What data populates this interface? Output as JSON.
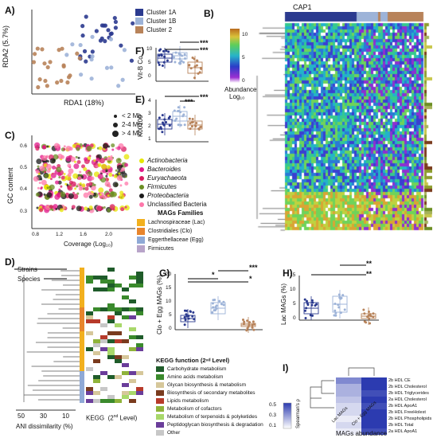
{
  "panels": {
    "A": "A)",
    "B": "B)",
    "C": "C)",
    "D": "D)",
    "E": "E)",
    "F": "F)",
    "G": "G)",
    "H": "H)",
    "I": "I)"
  },
  "cluster_legend": [
    {
      "label": "Cluster 1A",
      "color": "#2b3a8f"
    },
    {
      "label": "Cluster 1B",
      "color": "#9db3d8"
    },
    {
      "label": "Cluster 2",
      "color": "#b8835a"
    }
  ],
  "panelA": {
    "xlabel": "RDA1 (18%)",
    "ylabel": "RDA2 (5.7%)"
  },
  "panelB": {
    "title": "CAP1",
    "colorbar_ticks": [
      "10",
      "5",
      "0"
    ],
    "colorbar_label_1": "Abundance",
    "colorbar_label_2": "Log₁₀"
  },
  "panelF": {
    "ylabel": "Vit-B Co",
    "yticks": [
      "10",
      "5",
      "0"
    ],
    "sig": [
      "***",
      "***"
    ]
  },
  "panelE": {
    "ylabel": "K00100",
    "yticks": [
      "4",
      "3",
      "2",
      "1"
    ],
    "sig": [
      "***",
      "***"
    ]
  },
  "panelC": {
    "ylabel": "GC content",
    "xlabel": "Coverage (Log₁₀)",
    "yticks": [
      "0.6",
      "0.5",
      "0.4",
      "0.3"
    ],
    "xticks": [
      "0.8",
      "1.2",
      "1.6",
      "2.0"
    ],
    "size_legend": [
      "< 2 Mb",
      "2-4 Mb",
      "> 4 Mb"
    ],
    "phylum_legend": [
      {
        "label": "Actinobacteria",
        "color": "#e6e600"
      },
      {
        "label": "Bacteroides",
        "color": "#e0188a"
      },
      {
        "label": "Euryachaeota",
        "color": "#d81b60"
      },
      {
        "label": "Firmicutes",
        "color": "#6b8e23"
      },
      {
        "label": "Proteobacteria",
        "color": "#1a1a1a"
      },
      {
        "label": "Unclassified Bacteria",
        "color": "#ff77aa"
      }
    ],
    "families_title": "MAGs Families",
    "families": [
      {
        "label": "Lachnospiraceae (Lac)",
        "color": "#f2b01e"
      },
      {
        "label": "Clostridiales (Clo)",
        "color": "#e8852c"
      },
      {
        "label": "Eggerthellaceae (Egg)",
        "color": "#8fa9d6"
      },
      {
        "label": "Firmicutes",
        "color": "#b8a4c9"
      }
    ]
  },
  "panelD": {
    "strains_label": "Strains",
    "species_label": "Species",
    "xlabel": "ANI dissimilarity (%)",
    "xticks": [
      "50",
      "30",
      "10"
    ],
    "kegg_label": "KEGG",
    "kegg_sub": "(2",
    "kegg_sup": "nd",
    "kegg_end": " Level)",
    "legend_title": "KEGG function (2ⁿᵈ Level)",
    "legend": [
      {
        "label": "Carbohydrate metabolism",
        "color": "#1f5c2a"
      },
      {
        "label": "Amino acids metabolism",
        "color": "#3a8a2c"
      },
      {
        "label": "Glycan biosynthesis & metabolism",
        "color": "#d6c79a"
      },
      {
        "label": "Biosynthesis of secondary metabolites",
        "color": "#7a3b1e"
      },
      {
        "label": "Lipids metabolism",
        "color": "#b73a2a"
      },
      {
        "label": "Metabolism of cofactors",
        "color": "#8fb33a"
      },
      {
        "label": "Metabolism of terpenoids & polyketides",
        "color": "#a8d86a"
      },
      {
        "label": "Peptidoglycan biosynthesis & degradation",
        "color": "#6a3d9a"
      },
      {
        "label": "Other",
        "color": "#c7c7c7"
      }
    ]
  },
  "panelG": {
    "ylabel": "Clo + Egg MAGs (%)",
    "yticks": [
      "20",
      "15",
      "10",
      "5",
      "0"
    ],
    "sig": [
      "*",
      "***",
      "*"
    ]
  },
  "panelH": {
    "ylabel": "Lac MAGs (%)",
    "yticks": [
      "15",
      "10",
      "5",
      "0"
    ],
    "sig": [
      "**",
      "**"
    ]
  },
  "panelI": {
    "rows": [
      "2b HDL CE",
      "2b HDL Cholesterol",
      "2b HDL Triglycerides",
      "2a HDL Cholesterol",
      "2b HDL ApoA1",
      "2b HDL FreeHolest",
      "2b HDL Phospholipids",
      "2b HDL Total",
      "2a HDL ApoA1"
    ],
    "cols": [
      "Lac MAGs",
      "Clo + Egg MAGs"
    ],
    "xlabel": "MAGs abundance",
    "legend_ticks": [
      "0.5",
      "0.3",
      "0.1"
    ],
    "legend_label": "Spearman's ρ"
  }
}
